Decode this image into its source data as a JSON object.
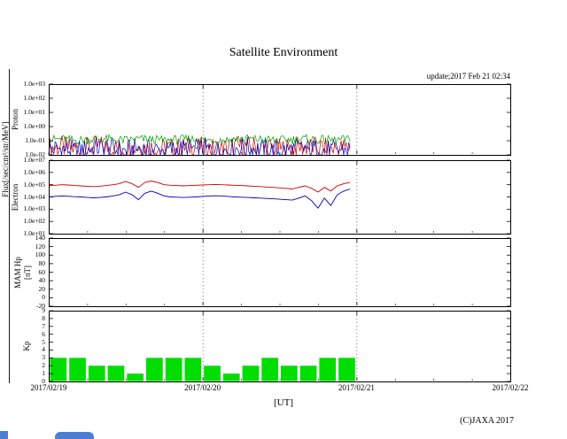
{
  "header": {
    "title": "Satellite Environment",
    "update_text": "update;2017 Feb 21 02:34"
  },
  "footer": {
    "copyright": "(C)JAXA 2017"
  },
  "ui": {
    "scrollbar_color": "#4a7ed2",
    "frame_color": "#000000",
    "background_color": "#ffffff"
  },
  "chart_data": {
    "type": "line",
    "title": "Satellite Environment",
    "x_axis": {
      "label": "[UT]",
      "tick_labels": [
        "2017/02/19",
        "2017/02/20",
        "2017/02/21",
        "2017/02/22"
      ],
      "tick_hours": [
        0,
        24,
        48,
        72
      ],
      "range_hours": [
        0,
        72
      ],
      "grid_hours": [
        24,
        48
      ],
      "minor_tick_step_hours": 6
    },
    "panels": [
      {
        "id": "proton",
        "ylabel": "Proton",
        "shared_ylabel": "Flux[/sec/cm²/str/MeV]",
        "yscale": "log",
        "ylim": [
          0.01,
          1000
        ],
        "ytick_values": [
          1000,
          100,
          10,
          1,
          0.1,
          0.01
        ],
        "ytick_labels": [
          "1.0e+03",
          "1.0e+02",
          "1.0e+01",
          "1.0e+00",
          "1.0e-01",
          "1.0e-02"
        ],
        "data_end_hour": 47,
        "series": [
          {
            "name": "proton-flux-red",
            "color": "#cc0000",
            "type": "noisy",
            "base_step_hours": 2,
            "base": [
              0.06,
              0.07,
              0.05,
              0.06,
              0.08,
              0.06,
              0.05,
              0.07,
              0.06,
              0.05,
              0.06,
              0.07,
              0.06,
              0.05,
              0.06,
              0.08,
              0.07,
              0.06,
              0.05,
              0.06,
              0.07,
              0.06,
              0.05,
              0.06,
              0.07,
              0.06
            ],
            "noise_exp": [
              -1.05,
              0.5
            ]
          },
          {
            "name": "proton-flux-blue",
            "color": "#0000bb",
            "type": "noisy",
            "base_step_hours": 2,
            "base": [
              0.05,
              0.06,
              0.04,
              0.05,
              0.07,
              0.05,
              0.04,
              0.06,
              0.05,
              0.04,
              0.05,
              0.06,
              0.05,
              0.04,
              0.05,
              0.07,
              0.06,
              0.05,
              0.04,
              0.05,
              0.06,
              0.05,
              0.04,
              0.05,
              0.06,
              0.05
            ],
            "noise_exp": [
              -1.1,
              0.45
            ]
          },
          {
            "name": "proton-flux-green",
            "color": "#00a000",
            "type": "noisy",
            "base_step_hours": 2,
            "base": [
              0.1,
              0.11,
              0.09,
              0.1,
              0.12,
              0.1,
              0.09,
              0.11,
              0.1,
              0.09,
              0.1,
              0.11,
              0.1,
              0.09,
              0.1,
              0.12,
              0.11,
              0.1,
              0.09,
              0.1,
              0.11,
              0.1,
              0.09,
              0.1,
              0.11,
              0.1
            ],
            "noise_exp": [
              -0.25,
              0.4
            ]
          }
        ]
      },
      {
        "id": "electron",
        "ylabel": "Electron",
        "yscale": "log",
        "ylim": [
          10,
          10000000
        ],
        "ytick_values": [
          10000000,
          1000000,
          100000,
          10000,
          1000,
          100,
          10
        ],
        "ytick_labels": [
          "1.0e+07",
          "1.0e+06",
          "1.0e+05",
          "1.0e+04",
          "1.0e+03",
          "1.0e+02",
          "1.0e+01"
        ],
        "data_end_hour": 47,
        "series": [
          {
            "name": "electron-flux-red",
            "color": "#cc0000",
            "type": "line",
            "step_hours": 1,
            "values": [
              80000,
              90000,
              100000,
              95000,
              85000,
              80000,
              75000,
              70000,
              75000,
              85000,
              100000,
              120000,
              180000,
              120000,
              60000,
              150000,
              200000,
              150000,
              100000,
              90000,
              85000,
              80000,
              85000,
              90000,
              95000,
              100000,
              105000,
              100000,
              95000,
              90000,
              85000,
              80000,
              75000,
              70000,
              65000,
              60000,
              55000,
              50000,
              45000,
              60000,
              80000,
              50000,
              25000,
              60000,
              30000,
              80000,
              120000,
              150000
            ]
          },
          {
            "name": "electron-flux-blue",
            "color": "#0000bb",
            "type": "line",
            "step_hours": 1,
            "values": [
              10000,
              11000,
              12000,
              11500,
              10500,
              10000,
              9000,
              8500,
              9000,
              10000,
              12000,
              15000,
              25000,
              15000,
              6000,
              20000,
              30000,
              20000,
              12000,
              10000,
              9500,
              9000,
              9500,
              10000,
              11000,
              12000,
              12500,
              12000,
              11000,
              10000,
              9500,
              9000,
              8500,
              8000,
              7500,
              7000,
              6500,
              6000,
              5500,
              8000,
              12000,
              5000,
              1200,
              8000,
              2000,
              15000,
              30000,
              45000
            ]
          }
        ]
      },
      {
        "id": "hp",
        "ylabel": "MAM Hp",
        "ylabel2": "[nT]",
        "yscale": "linear",
        "ylim": [
          -20,
          140
        ],
        "ytick_values": [
          140,
          120,
          100,
          80,
          60,
          40,
          20,
          0,
          -20
        ],
        "ytick_labels": [
          "140",
          "120",
          "100",
          "80",
          "60",
          "40",
          "20",
          "0",
          "-20"
        ],
        "data_end_hour": 0,
        "series": []
      },
      {
        "id": "kp",
        "ylabel": "Kp",
        "yscale": "linear",
        "ylim": [
          0,
          9
        ],
        "ytick_values": [
          9,
          8,
          7,
          6,
          5,
          4,
          3,
          2,
          1,
          0
        ],
        "ytick_labels": [
          "9",
          "8",
          "7",
          "6",
          "5",
          "4",
          "3",
          "2",
          "1",
          "0"
        ],
        "data_end_hour": 48,
        "series": [
          {
            "name": "kp-index-bars",
            "color": "#00dd00",
            "type": "bar",
            "bar_width_hours": 3,
            "values": [
              3,
              3,
              2,
              2,
              1,
              3,
              3,
              3,
              2,
              1,
              2,
              3,
              2,
              2,
              3,
              3
            ]
          }
        ]
      }
    ]
  }
}
